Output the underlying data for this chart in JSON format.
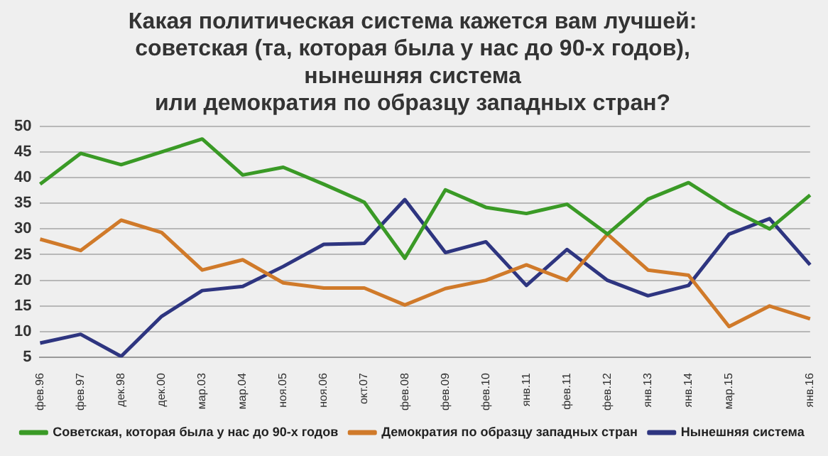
{
  "chart_data": {
    "type": "line",
    "title": [
      "Какая политическая система кажется вам лучшей:",
      "советская (та, которая была у нас до 90-х годов),",
      "нынешняя система",
      "или демократия по образцу западных стран?"
    ],
    "categories": [
      "фев.96",
      "фев.97",
      "дек.98",
      "дек.00",
      "мар.03",
      "мар.04",
      "ноя.05",
      "ноя.06",
      "окт.07",
      "фев.08",
      "фев.09",
      "фев.10",
      "янв.11",
      "фев.11",
      "фев.12",
      "янв.13",
      "янв.14",
      "мар.15",
      null,
      "янв.16"
    ],
    "series": [
      {
        "name": "Советская, которая была у нас до 90-х годов",
        "color": "#3a9a26",
        "values": [
          38.7,
          44.7,
          42.5,
          45,
          47.5,
          40.5,
          42,
          38.7,
          35.2,
          24.3,
          37.6,
          34.2,
          33,
          34.8,
          29,
          35.8,
          39,
          34,
          30,
          36.6
        ]
      },
      {
        "name": "Демократия по образцу западных стран",
        "color": "#d07a2a",
        "values": [
          28,
          25.8,
          31.7,
          29.3,
          22,
          24,
          19.5,
          18.5,
          18.5,
          15.2,
          18.4,
          20,
          23,
          20,
          29,
          22,
          21,
          11,
          15,
          12.5
        ]
      },
      {
        "name": "Нынешняя система",
        "color": "#2e3580",
        "values": [
          7.8,
          9.5,
          5.2,
          13,
          18,
          18.8,
          22.7,
          27,
          27.2,
          35.7,
          25.4,
          27.5,
          19,
          26,
          20,
          17,
          19,
          29,
          32,
          23
        ]
      }
    ],
    "ylim": [
      5,
      50
    ],
    "yticks": [
      5,
      10,
      15,
      20,
      25,
      30,
      35,
      40,
      45,
      50
    ],
    "grid": "y",
    "legend": "bottom",
    "marker": "none",
    "line_style": "solid"
  }
}
